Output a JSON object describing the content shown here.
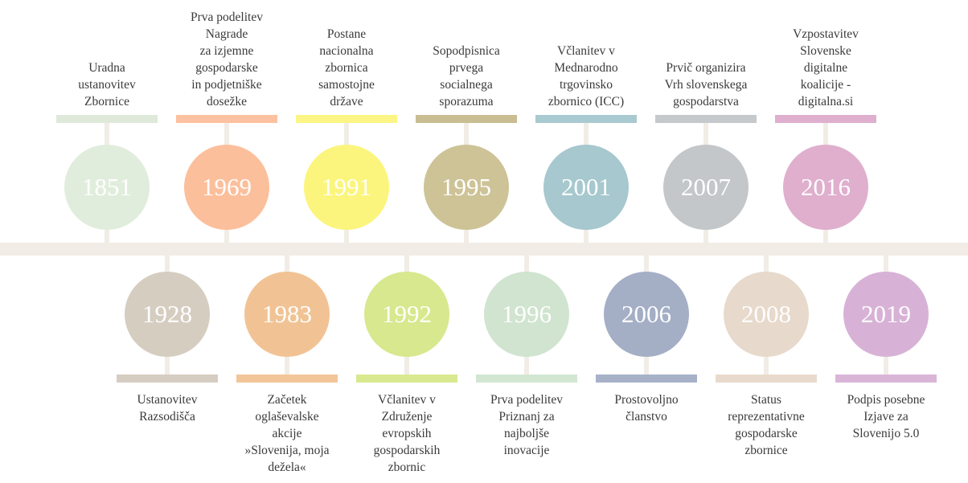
{
  "top": [
    {
      "year": "1851",
      "text": "Uradna\nustanovitev\nZbornice",
      "circle": "#e1eddc",
      "bar": "#dfe9d9"
    },
    {
      "year": "1969",
      "text": "Prva podelitev\nNagrade\nza izjemne\ngospodarske\nin podjetniške\ndosežke",
      "circle": "#fcbf9b",
      "bar": "#fcc1a0"
    },
    {
      "year": "1991",
      "text": "Postane\nnacionalna\nzbornica\nsamostojne\ndržave",
      "circle": "#fbf57d",
      "bar": "#fbf585"
    },
    {
      "year": "1995",
      "text": "Sopodpisnica\nprvega\nsocialnega\nsporazuma",
      "circle": "#cdc397",
      "bar": "#c8be92"
    },
    {
      "year": "2001",
      "text": "Včlanitev v\nMednarodno\ntrgovinsko\nzbornico (ICC)",
      "circle": "#a6c8ce",
      "bar": "#a9cad0"
    },
    {
      "year": "2007",
      "text": "Prvič organizira\nVrh slovenskega\ngospodarstva",
      "circle": "#c3c7c9",
      "bar": "#c5c9cb"
    },
    {
      "year": "2016",
      "text": "Vzpostavitev\nSlovenske\ndigitalne\nkoalicije -\ndigitalna.si",
      "circle": "#dfafcd",
      "bar": "#deb0ce"
    }
  ],
  "bottom": [
    {
      "year": "1928",
      "text": "Ustanovitev\nRazsodišča",
      "circle": "#d6cdc1",
      "bar": "#d6cdc2"
    },
    {
      "year": "1983",
      "text": "Začetek\noglaševalske\nakcije\n»Slovenija, moja\ndežela«",
      "circle": "#f1c394",
      "bar": "#f2c698"
    },
    {
      "year": "1992",
      "text": "Včlanitev v\nZdruženje\nevropskih\ngospodarskih\nzbornic",
      "circle": "#d7e88e",
      "bar": "#d8e990"
    },
    {
      "year": "1996",
      "text": "Prva podelitev\nPriznanj za\nnajboljše\ninovacije",
      "circle": "#d0e4cf",
      "bar": "#d3e6d2"
    },
    {
      "year": "2006",
      "text": "Prostovoljno\nčlanstvo",
      "circle": "#a4afc6",
      "bar": "#a7b2c9"
    },
    {
      "year": "2008",
      "text": "Status\nreprezentativne\ngospodarske\nzbornice",
      "circle": "#e7d9cb",
      "bar": "#e8dbcd"
    },
    {
      "year": "2019",
      "text": "Podpis posebne\nIzjave za\nSlovenijo 5.0",
      "circle": "#d7b2d6",
      "bar": "#d9b5d8"
    }
  ]
}
